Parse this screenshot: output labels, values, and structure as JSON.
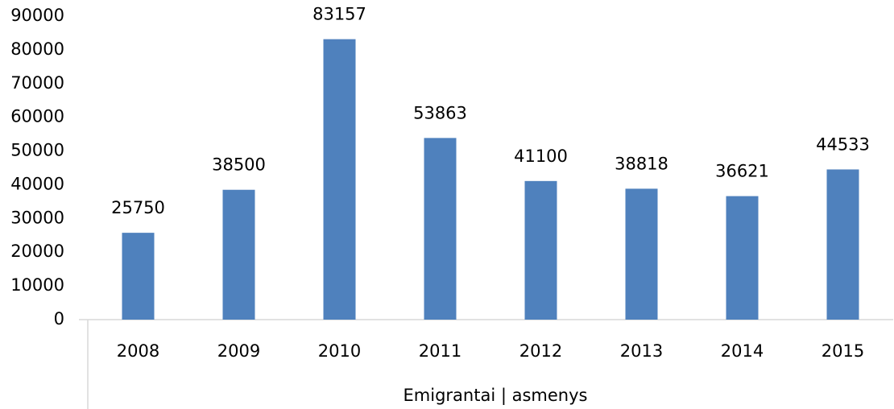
{
  "chart_data": {
    "type": "bar",
    "categories": [
      "2008",
      "2009",
      "2010",
      "2011",
      "2012",
      "2013",
      "2014",
      "2015"
    ],
    "values": [
      25750,
      38500,
      83157,
      53863,
      41100,
      38818,
      36621,
      44533
    ],
    "color": "#4f81bd",
    "ylim": [
      0,
      90000
    ],
    "yticks": [
      0,
      10000,
      20000,
      30000,
      40000,
      50000,
      60000,
      70000,
      80000,
      90000
    ],
    "xlabel": "Emigrantai | asmenys",
    "grid": false
  }
}
